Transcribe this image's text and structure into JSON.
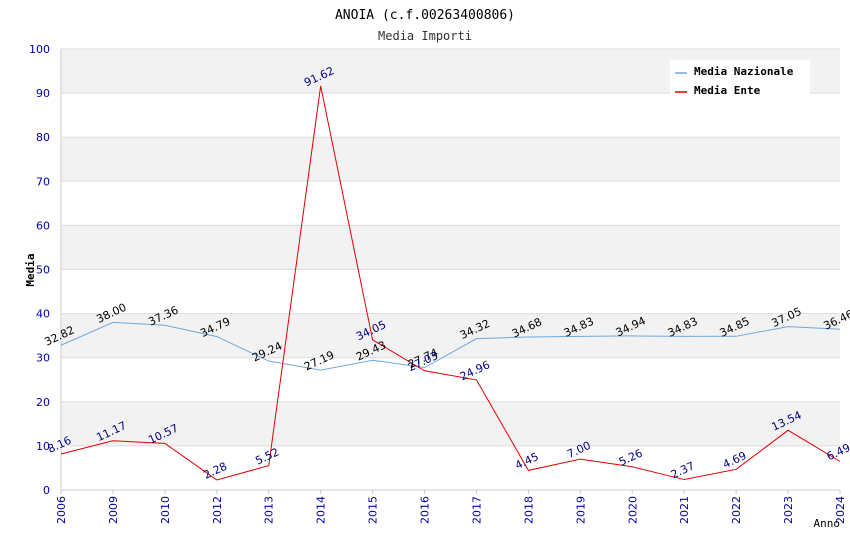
{
  "chart_data": {
    "type": "line",
    "title": "ANOIA (c.f.00263400806)",
    "subtitle": "Media Importi",
    "xlabel": "Anno",
    "ylabel": "Media",
    "ylim": [
      0,
      100
    ],
    "yticks": [
      "0",
      "10",
      "20",
      "30",
      "40",
      "50",
      "60",
      "70",
      "80",
      "90",
      "100"
    ],
    "categories": [
      "2006",
      "2009",
      "2010",
      "2012",
      "2013",
      "2014",
      "2015",
      "2016",
      "2017",
      "2018",
      "2019",
      "2020",
      "2021",
      "2022",
      "2023",
      "2024"
    ],
    "grid": true,
    "legend_position": "top-right",
    "series": [
      {
        "name": "Media Nazionale",
        "color": "#6fa8dc",
        "label_color": "#000000",
        "values": [
          32.82,
          38.0,
          37.36,
          34.79,
          29.24,
          27.19,
          29.43,
          27.74,
          34.32,
          34.68,
          34.83,
          34.94,
          34.83,
          34.85,
          37.05,
          36.46
        ],
        "labels": [
          "32.82",
          "38.00",
          "37.36",
          "34.79",
          "29.24",
          "27.19",
          "29.43",
          "27.74",
          "34.32",
          "34.68",
          "34.83",
          "34.94",
          "34.83",
          "34.85",
          "37.05",
          "36.46"
        ]
      },
      {
        "name": "Media Ente",
        "color": "#e00000",
        "label_color": "#000080",
        "values": [
          8.16,
          11.17,
          10.57,
          2.28,
          5.52,
          91.62,
          34.05,
          27.03,
          24.96,
          4.45,
          7.0,
          5.26,
          2.37,
          4.69,
          13.54,
          6.49
        ],
        "labels": [
          "8.16",
          "11.17",
          "10.57",
          "2.28",
          "5.52",
          "91.62",
          "34.05",
          "27.03",
          "24.96",
          "4.45",
          "7.00",
          "5.26",
          "2.37",
          "4.69",
          "13.54",
          "6.49"
        ]
      }
    ]
  }
}
